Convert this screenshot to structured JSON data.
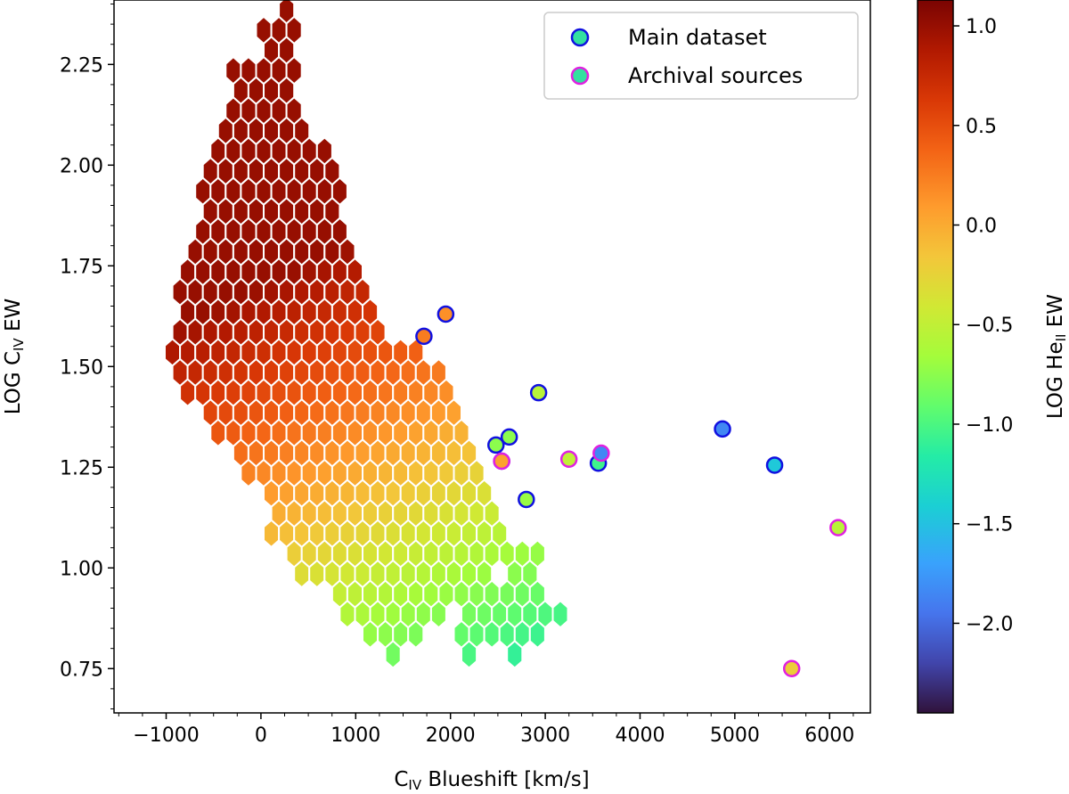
{
  "chart_data": {
    "type": "hexbin-scatter",
    "xlabel": {
      "main": "C",
      "sub": "IV",
      "rest": " Blueshift [km/s]"
    },
    "ylabel": {
      "main": "LOG C",
      "sub": "IV",
      "rest": " EW"
    },
    "colorbar_label": {
      "main": "LOG He",
      "sub": "II",
      "rest": " EW"
    },
    "xlim": [
      -1550,
      6430
    ],
    "ylim": [
      0.64,
      2.41
    ],
    "clim": [
      -2.45,
      1.13
    ],
    "x_ticks": [
      -1000,
      0,
      1000,
      2000,
      3000,
      4000,
      5000,
      6000
    ],
    "x_tick_labels": [
      "−1000",
      "0",
      "1000",
      "2000",
      "3000",
      "4000",
      "5000",
      "6000"
    ],
    "y_ticks": [
      0.75,
      1.0,
      1.25,
      1.5,
      1.75,
      2.0,
      2.25
    ],
    "y_tick_labels": [
      "0.75",
      "1.00",
      "1.25",
      "1.50",
      "1.75",
      "2.00",
      "2.25"
    ],
    "cbar_ticks": [
      1.0,
      0.5,
      0.0,
      -0.5,
      -1.0,
      -1.5,
      -2.0
    ],
    "cbar_tick_labels": [
      "1.0",
      "0.5",
      "0.0",
      "−0.5",
      "−1.0",
      "−1.5",
      "−2.0"
    ],
    "hexbin": {
      "dx": 160.5,
      "dy": 0.05,
      "x_origin": 270,
      "y_origin": 2.385,
      "rows": [
        {
          "i": 0,
          "cols": [
            [
              0,
              0
            ]
          ]
        },
        {
          "i": 1,
          "cols": [
            [
              -1.5,
              0.5
            ]
          ]
        },
        {
          "i": 2,
          "cols": [
            [
              -1,
              0
            ]
          ]
        },
        {
          "i": 3,
          "cols": [
            [
              -3.5,
              0.5
            ]
          ]
        },
        {
          "i": 4,
          "cols": [
            [
              -3,
              0
            ]
          ]
        },
        {
          "i": 5,
          "cols": [
            [
              -3.5,
              0.5
            ]
          ]
        },
        {
          "i": 6,
          "cols": [
            [
              -4,
              1
            ]
          ]
        },
        {
          "i": 7,
          "cols": [
            [
              -4.5,
              2.5
            ]
          ]
        },
        {
          "i": 8,
          "cols": [
            [
              -5,
              3
            ]
          ]
        },
        {
          "i": 9,
          "cols": [
            [
              -5.5,
              3.5
            ]
          ]
        },
        {
          "i": 10,
          "cols": [
            [
              -5,
              3
            ]
          ]
        },
        {
          "i": 11,
          "cols": [
            [
              -5.5,
              3.5
            ]
          ]
        },
        {
          "i": 12,
          "cols": [
            [
              -6,
              4
            ]
          ]
        },
        {
          "i": 13,
          "cols": [
            [
              -6.5,
              4.5
            ]
          ]
        },
        {
          "i": 14,
          "cols": [
            [
              -7,
              5
            ]
          ]
        },
        {
          "i": 15,
          "cols": [
            [
              -6.5,
              5.5
            ]
          ]
        },
        {
          "i": 16,
          "cols": [
            [
              -7,
              6
            ]
          ]
        },
        {
          "i": 17,
          "cols": [
            [
              -7.5,
              8.5
            ]
          ]
        },
        {
          "i": 18,
          "cols": [
            [
              -7,
              10
            ]
          ]
        },
        {
          "i": 19,
          "cols": [
            [
              -6.5,
              10.5
            ]
          ]
        },
        {
          "i": 20,
          "cols": [
            [
              -5,
              11
            ]
          ]
        },
        {
          "i": 21,
          "cols": [
            [
              -4.5,
              11.5
            ]
          ]
        },
        {
          "i": 22,
          "cols": [
            [
              -3,
              12
            ]
          ]
        },
        {
          "i": 23,
          "cols": [
            [
              -2.5,
              12.5
            ]
          ]
        },
        {
          "i": 24,
          "cols": [
            [
              -1,
              13
            ]
          ]
        },
        {
          "i": 25,
          "cols": [
            [
              -0.5,
              13.5
            ]
          ]
        },
        {
          "i": 26,
          "cols": [
            [
              -1,
              14
            ]
          ]
        },
        {
          "i": 27,
          "cols": [
            [
              0.5,
              16.5
            ]
          ]
        },
        {
          "i": 28,
          "cols": [
            [
              1,
              13
            ],
            [
              15,
              16
            ]
          ]
        },
        {
          "i": 29,
          "cols": [
            [
              3.5,
              14.5
            ],
            [
              15.5,
              16.5
            ]
          ]
        },
        {
          "i": 30,
          "cols": [
            [
              4,
              10
            ],
            [
              12,
              18
            ]
          ]
        },
        {
          "i": 31,
          "cols": [
            [
              5.5,
              8.5
            ],
            [
              11.5,
              13.5
            ],
            [
              14.5,
              16.5
            ]
          ]
        },
        {
          "i": 32,
          "cols": [
            [
              7,
              7
            ],
            [
              12,
              12
            ],
            [
              15,
              15
            ]
          ]
        }
      ]
    },
    "main_dataset": [
      {
        "x": 1950,
        "y": 1.63,
        "c": 0.15
      },
      {
        "x": 1720,
        "y": 1.575,
        "c": 0.25
      },
      {
        "x": 2930,
        "y": 1.435,
        "c": -0.55
      },
      {
        "x": 2620,
        "y": 1.325,
        "c": -0.75
      },
      {
        "x": 2480,
        "y": 1.305,
        "c": -0.75
      },
      {
        "x": 2540,
        "y": 1.265,
        "c": -0.7
      },
      {
        "x": 3560,
        "y": 1.26,
        "c": -1.05
      },
      {
        "x": 2800,
        "y": 1.17,
        "c": -0.7
      },
      {
        "x": 4870,
        "y": 1.345,
        "c": -1.85
      },
      {
        "x": 5420,
        "y": 1.255,
        "c": -1.45
      }
    ],
    "archival_sources": [
      {
        "x": 2540,
        "y": 1.265,
        "c": 0.05
      },
      {
        "x": 3250,
        "y": 1.27,
        "c": -0.5
      },
      {
        "x": 3590,
        "y": 1.285,
        "c": -1.85
      },
      {
        "x": 6090,
        "y": 1.1,
        "c": -0.55
      },
      {
        "x": 5600,
        "y": 0.75,
        "c": -0.2
      }
    ],
    "legend": {
      "position": "top-right",
      "entries": [
        "Main dataset",
        "Archival sources"
      ],
      "edge_colors": [
        "#1010e0",
        "#e020e0"
      ],
      "swatch_color": "#33e0a0"
    }
  }
}
